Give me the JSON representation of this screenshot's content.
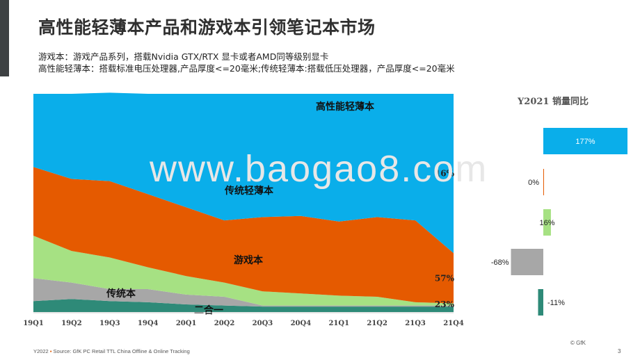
{
  "title": "高性能轻薄本产品和游戏本引领笔记本市场",
  "notes": [
    "游戏本：游戏产品系列，搭载Nvidia GTX/RTX 显卡或者AMD同等级别显卡",
    "高性能轻薄本：搭载标准电压处理器,产品厚度<=20毫米;传统轻薄本:搭载低压处理器，产品厚度<=20毫米"
  ],
  "watermark": "www.baogao8.com",
  "footer": {
    "year": "Y2022",
    "source": "Source: GfK PC Retail TTL China Offline & Online Tracking",
    "copyright": "© GfK",
    "page": "3"
  },
  "colors": {
    "high_perf": "#0aaeea",
    "traditional_thin": "#e55a00",
    "gaming": "#a6e183",
    "traditional": "#a7a7a7",
    "two_in_one": "#2e8a78"
  },
  "chart_data": [
    {
      "type": "area",
      "stacked": true,
      "normalized": true,
      "x": [
        "19Q1",
        "19Q2",
        "19Q3",
        "19Q4",
        "20Q1",
        "20Q2",
        "20Q3",
        "20Q4",
        "21Q1",
        "21Q2",
        "21Q3",
        "21Q4"
      ],
      "series": [
        {
          "name": "二合一",
          "values": [
            5,
            6,
            5,
            4.5,
            3.5,
            3,
            2.5,
            2.5,
            2.5,
            2.5,
            2.5,
            2.5
          ]
        },
        {
          "name": "传统本",
          "values": [
            10.5,
            7.5,
            5.5,
            6,
            4.5,
            4,
            0.5,
            0.5,
            0.5,
            0.5,
            0.5,
            0.5
          ]
        },
        {
          "name": "游戏本",
          "values": [
            19.5,
            14.5,
            14.5,
            10,
            8.5,
            6.5,
            6.5,
            5.5,
            4.5,
            4,
            1.5,
            1
          ]
        },
        {
          "name": "传统轻薄本",
          "values": [
            31.5,
            33,
            35,
            33.5,
            31.5,
            28.5,
            34,
            35.5,
            34,
            36.5,
            37.5,
            23
          ]
        },
        {
          "name": "高性能轻薄本",
          "values": [
            33.5,
            39,
            40.5,
            46,
            52,
            58,
            56.5,
            56,
            58.5,
            56.5,
            58,
            73
          ]
        }
      ],
      "data_labels": {
        "高性能轻薄本": "16%",
        "传统轻薄本": "57%",
        "游戏本": "23%"
      },
      "ylim": [
        0,
        100
      ]
    },
    {
      "type": "bar",
      "orientation": "horizontal",
      "title": "Y2021 销量同比",
      "categories": [
        "高性能轻薄本",
        "传统轻薄本",
        "游戏本",
        "传统本",
        "二合一"
      ],
      "values": [
        177,
        0,
        16,
        -68,
        -11
      ],
      "labels": [
        "177%",
        "0%",
        "16%",
        "-68%",
        "-11%"
      ]
    }
  ]
}
